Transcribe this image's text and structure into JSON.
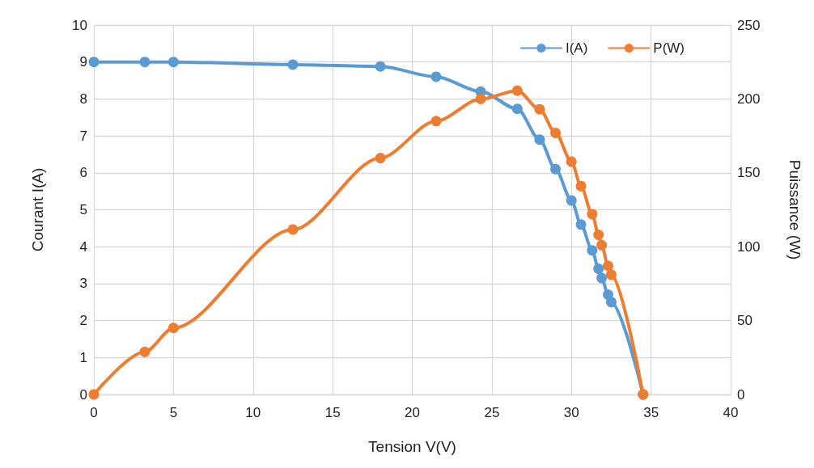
{
  "chart_data": {
    "type": "line",
    "xlabel": "Tension V(V)",
    "ylabel": "Courant I(A)",
    "y2label": "Puissance (W)",
    "xlim": [
      0,
      40
    ],
    "xticks": [
      0,
      5,
      10,
      15,
      20,
      25,
      30,
      35,
      40
    ],
    "ylim": [
      0,
      10
    ],
    "yticks": [
      0,
      1,
      2,
      3,
      4,
      5,
      6,
      7,
      8,
      9,
      10
    ],
    "y2lim": [
      0,
      250
    ],
    "y2ticks": [
      0,
      50,
      100,
      150,
      200,
      250
    ],
    "grid": true,
    "legend": "top right",
    "marker": "circle",
    "line_style": "solid",
    "series": [
      {
        "name": "I(A)",
        "color": "#5b9bd5",
        "x": [
          0,
          3.2,
          5,
          12.5,
          18,
          21.5,
          24.3,
          26.6,
          28,
          29,
          30,
          30.6,
          31.3,
          31.7,
          31.9,
          32.3,
          32.5,
          34.5
        ],
        "values": [
          9,
          9,
          9,
          8.93,
          8.88,
          8.6,
          8.2,
          7.73,
          6.9,
          6.1,
          5.25,
          4.6,
          3.9,
          3.4,
          3.15,
          2.7,
          2.5,
          0
        ]
      },
      {
        "name": "P(W)",
        "color": "#ed7d31",
        "axis": "y2",
        "x": [
          0,
          3.2,
          5,
          12.5,
          18,
          21.5,
          24.3,
          26.6,
          28,
          29,
          30,
          30.6,
          31.3,
          31.7,
          31.9,
          32.3,
          32.5,
          34.5
        ],
        "values": [
          0,
          28.8,
          45,
          111.6,
          160,
          185,
          200,
          205.6,
          193,
          177,
          157.5,
          141,
          122,
          108,
          101,
          87,
          81,
          0
        ]
      }
    ]
  }
}
